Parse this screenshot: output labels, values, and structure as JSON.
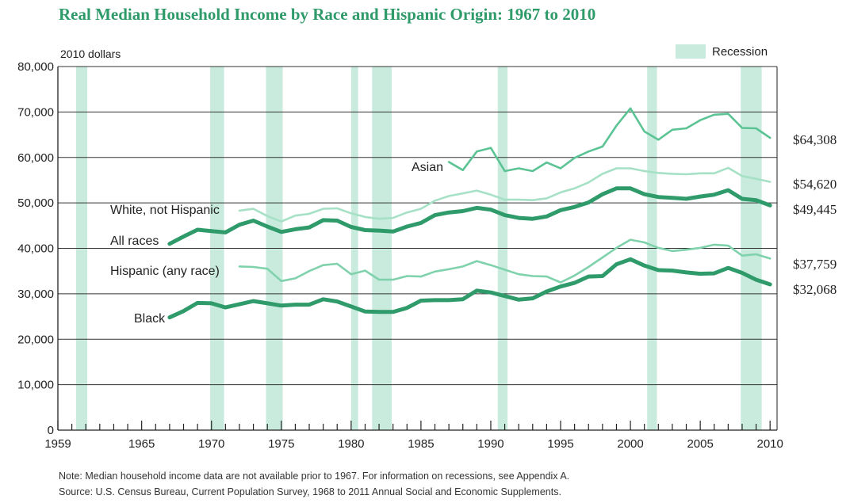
{
  "title": "Real Median Household Income by Race and Hispanic Origin: 1967 to 2010",
  "note": "Note: Median household income data are not available prior to 1967. For information on recessions, see Appendix A.",
  "source": "Source: U.S. Census Bureau, Current Population Survey, 1968 to 2011 Annual Social and Economic Supplements.",
  "colors": {
    "title": "#2f9a6a",
    "recession": "#c8ebde",
    "all_races": "#2f9a6a",
    "black": "#2f9a6a",
    "asian": "#5cc394",
    "hispanic": "#7fd2ac",
    "white_not_hispanic": "#a6e1c6"
  },
  "chart_data": {
    "type": "line",
    "ylabel": "2010 dollars",
    "xlim": [
      1959,
      2010.5
    ],
    "ylim": [
      0,
      80000
    ],
    "x_ticks": [
      1959,
      1965,
      1970,
      1975,
      1980,
      1985,
      1990,
      1995,
      2000,
      2005,
      2010
    ],
    "y_ticks": [
      0,
      10000,
      20000,
      30000,
      40000,
      50000,
      60000,
      70000,
      80000
    ],
    "y_tick_labels": [
      "0",
      "10,000",
      "20,000",
      "30,000",
      "40,000",
      "50,000",
      "60,000",
      "70,000",
      "80,000"
    ],
    "grid": true,
    "legend": {
      "label": "Recession",
      "position": "top-right"
    },
    "recessions": [
      [
        1960.3,
        1961.1
      ],
      [
        1969.9,
        1970.9
      ],
      [
        1973.9,
        1975.1
      ],
      [
        1980.0,
        1980.5
      ],
      [
        1981.5,
        1982.9
      ],
      [
        1990.5,
        1991.2
      ],
      [
        2001.2,
        2001.9
      ],
      [
        2007.9,
        2009.4
      ]
    ],
    "series": [
      {
        "name": "All races",
        "end_label": "$49,445",
        "color_key": "all_races",
        "weight": "bold",
        "x": [
          1967,
          1968,
          1969,
          1970,
          1971,
          1972,
          1973,
          1974,
          1975,
          1976,
          1977,
          1978,
          1979,
          1980,
          1981,
          1982,
          1983,
          1984,
          1985,
          1986,
          1987,
          1988,
          1989,
          1990,
          1991,
          1992,
          1993,
          1994,
          1995,
          1996,
          1997,
          1998,
          1999,
          2000,
          2001,
          2002,
          2003,
          2004,
          2005,
          2006,
          2007,
          2008,
          2009,
          2010
        ],
        "y": [
          41000,
          42600,
          44100,
          43800,
          43500,
          45200,
          46100,
          44800,
          43600,
          44200,
          44600,
          46200,
          46100,
          44700,
          44000,
          43900,
          43700,
          44800,
          45600,
          47300,
          47900,
          48200,
          48900,
          48500,
          47300,
          46700,
          46500,
          47000,
          48400,
          49100,
          50100,
          51900,
          53200,
          53200,
          51900,
          51300,
          51100,
          50900,
          51400,
          51800,
          52800,
          50900,
          50600,
          49445
        ]
      },
      {
        "name": "Black",
        "end_label": "$32,068",
        "color_key": "black",
        "weight": "bold",
        "x": [
          1967,
          1968,
          1969,
          1970,
          1971,
          1972,
          1973,
          1974,
          1975,
          1976,
          1977,
          1978,
          1979,
          1980,
          1981,
          1982,
          1983,
          1984,
          1985,
          1986,
          1987,
          1988,
          1989,
          1990,
          1991,
          1992,
          1993,
          1994,
          1995,
          1996,
          1997,
          1998,
          1999,
          2000,
          2001,
          2002,
          2003,
          2004,
          2005,
          2006,
          2007,
          2008,
          2009,
          2010
        ],
        "y": [
          24800,
          26200,
          28000,
          27900,
          27000,
          27700,
          28400,
          27900,
          27400,
          27600,
          27600,
          28800,
          28300,
          27200,
          26100,
          26000,
          26000,
          26900,
          28500,
          28600,
          28600,
          28800,
          30700,
          30300,
          29500,
          28700,
          29000,
          30500,
          31600,
          32400,
          33800,
          33900,
          36500,
          37600,
          36200,
          35200,
          35100,
          34700,
          34400,
          34500,
          35700,
          34600,
          33100,
          32068
        ]
      },
      {
        "name": "Asian",
        "end_label": "$64,308",
        "color_key": "asian",
        "weight": "normal",
        "x": [
          1987,
          1988,
          1989,
          1990,
          1991,
          1992,
          1993,
          1994,
          1995,
          1996,
          1997,
          1998,
          1999,
          2000,
          2001,
          2002,
          2003,
          2004,
          2005,
          2006,
          2007,
          2008,
          2009,
          2010
        ],
        "y": [
          59000,
          57200,
          61300,
          62100,
          57000,
          57600,
          57000,
          58900,
          57600,
          59900,
          61300,
          62400,
          67000,
          70800,
          65700,
          63900,
          66100,
          66400,
          68200,
          69400,
          69600,
          66500,
          66400,
          64308
        ]
      },
      {
        "name": "White, not Hispanic",
        "end_label": "$54,620",
        "color_key": "white_not_hispanic",
        "weight": "normal",
        "x": [
          1972,
          1973,
          1974,
          1975,
          1976,
          1977,
          1978,
          1979,
          1980,
          1981,
          1982,
          1983,
          1984,
          1985,
          1986,
          1987,
          1988,
          1989,
          1990,
          1991,
          1992,
          1993,
          1994,
          1995,
          1996,
          1997,
          1998,
          1999,
          2000,
          2001,
          2002,
          2003,
          2004,
          2005,
          2006,
          2007,
          2008,
          2009,
          2010
        ],
        "y": [
          48300,
          48700,
          47100,
          45900,
          47200,
          47600,
          48700,
          48800,
          47700,
          46900,
          46500,
          46700,
          47900,
          48700,
          50500,
          51500,
          52100,
          52700,
          51800,
          50700,
          50700,
          50600,
          51000,
          52300,
          53200,
          54500,
          56400,
          57600,
          57600,
          57000,
          56600,
          56400,
          56300,
          56500,
          56500,
          57700,
          55900,
          55300,
          54620
        ]
      },
      {
        "name": "Hispanic (any race)",
        "end_label": "$37,759",
        "color_key": "hispanic",
        "weight": "normal",
        "x": [
          1972,
          1973,
          1974,
          1975,
          1976,
          1977,
          1978,
          1979,
          1980,
          1981,
          1982,
          1983,
          1984,
          1985,
          1986,
          1987,
          1988,
          1989,
          1990,
          1991,
          1992,
          1993,
          1994,
          1995,
          1996,
          1997,
          1998,
          1999,
          2000,
          2001,
          2002,
          2003,
          2004,
          2005,
          2006,
          2007,
          2008,
          2009,
          2010
        ],
        "y": [
          36000,
          35900,
          35500,
          32800,
          33400,
          35000,
          36300,
          36600,
          34300,
          35100,
          33100,
          33100,
          33900,
          33800,
          34900,
          35400,
          36000,
          37200,
          36300,
          35300,
          34300,
          33900,
          33800,
          32500,
          34000,
          35900,
          38000,
          40100,
          41900,
          41300,
          40100,
          39400,
          39700,
          40100,
          40800,
          40600,
          38400,
          38700,
          37759
        ]
      }
    ]
  }
}
